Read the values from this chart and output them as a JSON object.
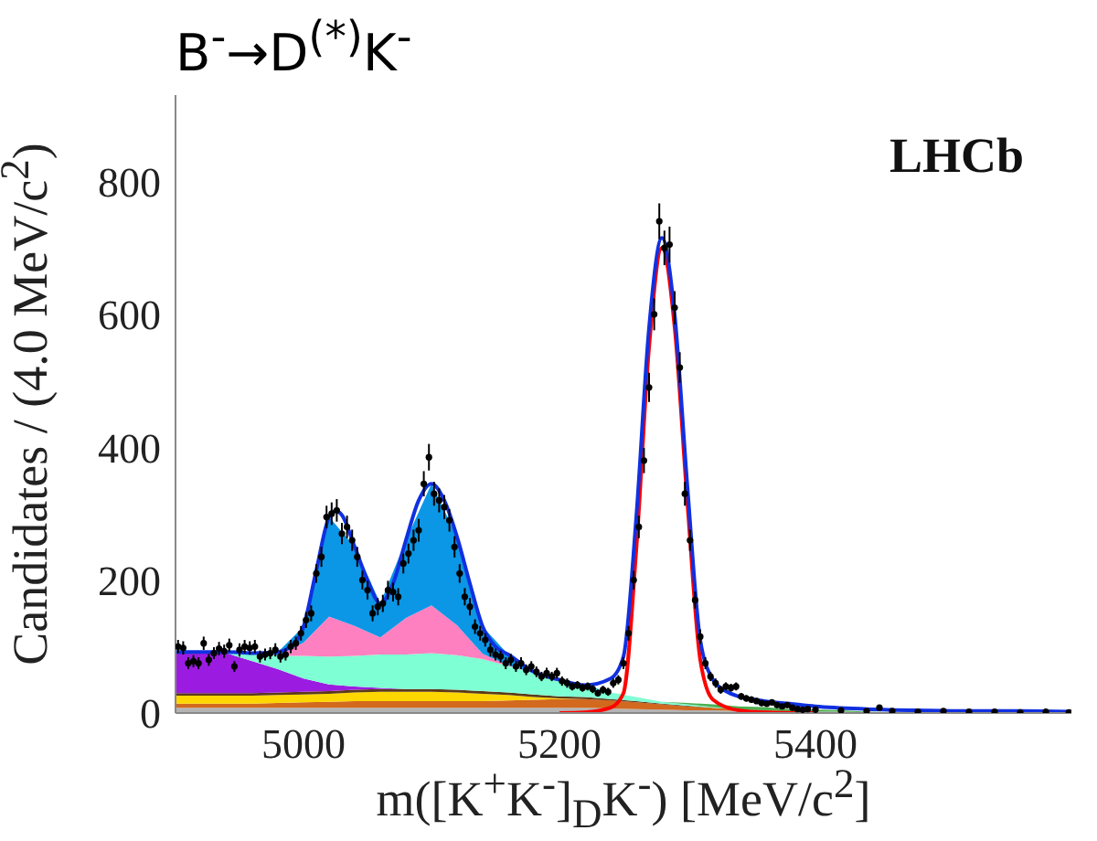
{
  "chart_data": {
    "type": "area",
    "title": "B$^{-}$→D$^{(*)}$K$^{-}$",
    "xlabel": "m([K$^{+}$K$^{-}$]$_{D}$K$^{-}$) [MeV/c$^{2}$]",
    "ylabel": "Candidates / (4.0 MeV/c$^{2}$)",
    "annotations": [
      "LHCb"
    ],
    "stacked": true,
    "grid": false,
    "xlim": [
      4900,
      5600
    ],
    "xticks": [
      5000,
      5200,
      5400
    ],
    "ylim": [
      0,
      930
    ],
    "yticks": [
      0,
      200,
      400,
      600,
      800
    ],
    "x": [
      4900,
      4920,
      4940,
      4960,
      4980,
      5000,
      5020,
      5040,
      5060,
      5080,
      5100,
      5120,
      5140,
      5160,
      5180,
      5200,
      5220,
      5240,
      5260,
      5280,
      5300,
      5320,
      5340,
      5360,
      5380,
      5400,
      5420,
      5440,
      5460,
      5480,
      5500,
      5520,
      5540,
      5560,
      5580,
      5600
    ],
    "series": [
      {
        "color": "#b4b4b4",
        "values": [
          8,
          8,
          8,
          8,
          8,
          8,
          8,
          8,
          8,
          8,
          8,
          8,
          8,
          8,
          8,
          8,
          8,
          7,
          6,
          5,
          4,
          4,
          3,
          3,
          2,
          2,
          2,
          1,
          1,
          1,
          1,
          0,
          0,
          0,
          0,
          0
        ]
      },
      {
        "color": "#d2691e",
        "values": [
          6,
          6,
          6,
          6,
          7,
          8,
          9,
          10,
          10,
          10,
          10,
          10,
          10,
          11,
          12,
          13,
          13,
          12,
          10,
          8,
          6,
          4,
          2,
          1,
          0,
          0,
          0,
          0,
          0,
          0,
          0,
          0,
          0,
          0,
          0,
          0
        ]
      },
      {
        "color": "#ffd700",
        "values": [
          12,
          12,
          12,
          12,
          12,
          12,
          12,
          13,
          14,
          14,
          14,
          13,
          11,
          8,
          4,
          1,
          0,
          0,
          0,
          0,
          0,
          0,
          0,
          0,
          0,
          0,
          0,
          0,
          0,
          0,
          0,
          0,
          0,
          0,
          0,
          0
        ]
      },
      {
        "color": "#5c3a1a",
        "values": [
          4,
          4,
          4,
          4,
          4,
          4,
          4,
          4,
          4,
          4,
          4,
          4,
          4,
          4,
          4,
          3,
          3,
          2,
          2,
          1,
          1,
          0,
          0,
          0,
          0,
          0,
          0,
          0,
          0,
          0,
          0,
          0,
          0,
          0,
          0,
          0
        ]
      },
      {
        "color": "#9b1ce0",
        "values": [
          62,
          62,
          60,
          48,
          35,
          20,
          10,
          5,
          2,
          0,
          null,
          null,
          null,
          null,
          null,
          null,
          null,
          null,
          null,
          null,
          null,
          null,
          null,
          null,
          null,
          null,
          null,
          null,
          null,
          null,
          null,
          null,
          null,
          null,
          null,
          null
        ]
      },
      {
        "color": "#7fffd4",
        "values": [
          null,
          0,
          2,
          12,
          20,
          34,
          42,
          46,
          50,
          52,
          54,
          52,
          48,
          40,
          32,
          24,
          16,
          10,
          6,
          3,
          2,
          1,
          0,
          null,
          null,
          null,
          null,
          null,
          null,
          null,
          null,
          null,
          null,
          null,
          null,
          null
        ]
      },
      {
        "color": "#ff80c0",
        "values": [
          null,
          null,
          null,
          0,
          1,
          20,
          60,
          45,
          26,
          55,
          72,
          45,
          8,
          1,
          0,
          null,
          null,
          null,
          null,
          null,
          null,
          null,
          null,
          null,
          null,
          null,
          null,
          null,
          null,
          null,
          null,
          null,
          null,
          null,
          null,
          null
        ]
      },
      {
        "color": "#0b96e6",
        "values": [
          null,
          null,
          null,
          0,
          5,
          24,
          150,
          119,
          51,
          117,
          183,
          133,
          41,
          16,
          2,
          1,
          2,
          0,
          null,
          null,
          null,
          null,
          null,
          null,
          null,
          null,
          null,
          null,
          null,
          null,
          null,
          null,
          null,
          null,
          null,
          null
        ]
      },
      {
        "color": "#4caf50",
        "values": [
          null,
          null,
          null,
          null,
          null,
          null,
          null,
          null,
          null,
          null,
          null,
          null,
          null,
          null,
          null,
          null,
          null,
          null,
          null,
          0,
          2,
          4,
          5,
          5,
          4,
          3,
          2,
          1,
          0,
          null,
          null,
          null,
          null,
          null,
          null,
          null
        ]
      },
      {
        "type": "line",
        "color": "#ff0000",
        "x": [
          5200,
          5220,
          5240,
          5250,
          5260,
          5270,
          5280,
          5290,
          5300,
          5310,
          5320,
          5340,
          5360,
          5400
        ],
        "values": [
          0,
          1,
          8,
          30,
          245,
          550,
          700,
          580,
          315,
          80,
          20,
          4,
          1,
          0
        ]
      },
      {
        "type": "line",
        "color": "#1030e0",
        "x": [
          4900,
          4920,
          4940,
          4960,
          4980,
          4990,
          5000,
          5010,
          5020,
          5025,
          5030,
          5040,
          5050,
          5060,
          5070,
          5080,
          5090,
          5100,
          5110,
          5120,
          5130,
          5140,
          5150,
          5160,
          5180,
          5200,
          5220,
          5240,
          5250,
          5260,
          5270,
          5280,
          5290,
          5300,
          5310,
          5320,
          5330,
          5340,
          5360,
          5380,
          5400,
          5440,
          5480,
          5520,
          5560,
          5600
        ],
        "values": [
          92,
          92,
          92,
          90,
          92,
          100,
          130,
          215,
          295,
          304,
          298,
          250,
          200,
          165,
          195,
          260,
          320,
          345,
          320,
          265,
          195,
          130,
          100,
          88,
          62,
          50,
          42,
          52,
          85,
          295,
          580,
          715,
          600,
          340,
          110,
          50,
          33,
          25,
          18,
          14,
          10,
          6,
          4,
          3,
          3,
          2
        ]
      },
      {
        "type": "scatter",
        "color": "#000000",
        "marker": "circle",
        "x": [
          4902,
          4906,
          4910,
          4914,
          4918,
          4922,
          4926,
          4930,
          4934,
          4938,
          4942,
          4946,
          4950,
          4954,
          4958,
          4962,
          4966,
          4970,
          4974,
          4978,
          4982,
          4986,
          4990,
          4994,
          4998,
          5002,
          5006,
          5010,
          5014,
          5018,
          5022,
          5026,
          5030,
          5034,
          5038,
          5042,
          5046,
          5050,
          5054,
          5058,
          5062,
          5066,
          5070,
          5074,
          5078,
          5082,
          5086,
          5090,
          5094,
          5098,
          5102,
          5106,
          5110,
          5114,
          5118,
          5122,
          5126,
          5130,
          5134,
          5138,
          5142,
          5146,
          5150,
          5154,
          5158,
          5162,
          5166,
          5170,
          5174,
          5178,
          5182,
          5186,
          5190,
          5194,
          5198,
          5202,
          5206,
          5210,
          5214,
          5218,
          5222,
          5226,
          5230,
          5234,
          5238,
          5242,
          5246,
          5250,
          5254,
          5258,
          5262,
          5266,
          5270,
          5274,
          5278,
          5282,
          5286,
          5290,
          5294,
          5298,
          5302,
          5306,
          5310,
          5314,
          5318,
          5322,
          5326,
          5330,
          5334,
          5338,
          5342,
          5346,
          5350,
          5354,
          5358,
          5362,
          5366,
          5370,
          5374,
          5378,
          5382,
          5386,
          5390,
          5394,
          5400,
          5420,
          5440,
          5450,
          5460,
          5480,
          5500,
          5520,
          5540,
          5560,
          5580,
          5598
        ],
        "values": [
          100,
          98,
          75,
          78,
          75,
          105,
          80,
          90,
          97,
          93,
          102,
          70,
          95,
          100,
          98,
          100,
          85,
          88,
          90,
          95,
          85,
          88,
          100,
          105,
          120,
          140,
          150,
          210,
          235,
          295,
          300,
          305,
          270,
          280,
          260,
          235,
          200,
          185,
          150,
          160,
          165,
          185,
          182,
          175,
          225,
          240,
          260,
          275,
          345,
          385,
          330,
          320,
          310,
          290,
          250,
          210,
          175,
          160,
          130,
          120,
          110,
          95,
          88,
          85,
          75,
          80,
          70,
          75,
          65,
          70,
          62,
          55,
          60,
          55,
          60,
          48,
          45,
          40,
          42,
          38,
          40,
          36,
          30,
          35,
          32,
          45,
          50,
          75,
          120,
          200,
          280,
          380,
          490,
          600,
          740,
          700,
          705,
          610,
          520,
          330,
          260,
          170,
          115,
          75,
          55,
          45,
          35,
          40,
          38,
          40,
          25,
          22,
          20,
          18,
          15,
          14,
          16,
          12,
          10,
          12,
          8,
          6,
          5,
          6,
          5,
          4,
          3,
          8,
          3,
          2,
          3,
          2,
          2,
          1,
          2,
          1
        ],
        "errors": [
          10,
          10,
          9,
          9,
          9,
          10,
          9,
          9,
          10,
          10,
          10,
          8,
          10,
          10,
          10,
          10,
          9,
          9,
          9,
          10,
          9,
          9,
          10,
          10,
          11,
          12,
          12,
          14,
          15,
          17,
          17,
          17,
          16,
          17,
          16,
          15,
          14,
          14,
          12,
          13,
          13,
          14,
          14,
          13,
          15,
          15,
          16,
          17,
          19,
          20,
          18,
          18,
          18,
          17,
          16,
          14,
          13,
          13,
          11,
          11,
          10,
          10,
          9,
          9,
          9,
          9,
          8,
          9,
          8,
          8,
          8,
          7,
          8,
          7,
          8,
          7,
          7,
          6,
          6,
          6,
          6,
          6,
          5,
          6,
          6,
          7,
          7,
          9,
          11,
          14,
          17,
          19,
          22,
          24,
          27,
          26,
          27,
          25,
          23,
          18,
          16,
          13,
          11,
          9,
          7,
          7,
          6,
          6,
          6,
          6,
          5,
          5,
          5,
          4,
          4,
          4,
          4,
          3,
          3,
          3,
          3,
          null,
          null,
          null,
          null,
          null,
          null,
          null,
          null,
          null,
          null,
          null,
          null,
          null,
          null,
          null
        ]
      }
    ]
  }
}
